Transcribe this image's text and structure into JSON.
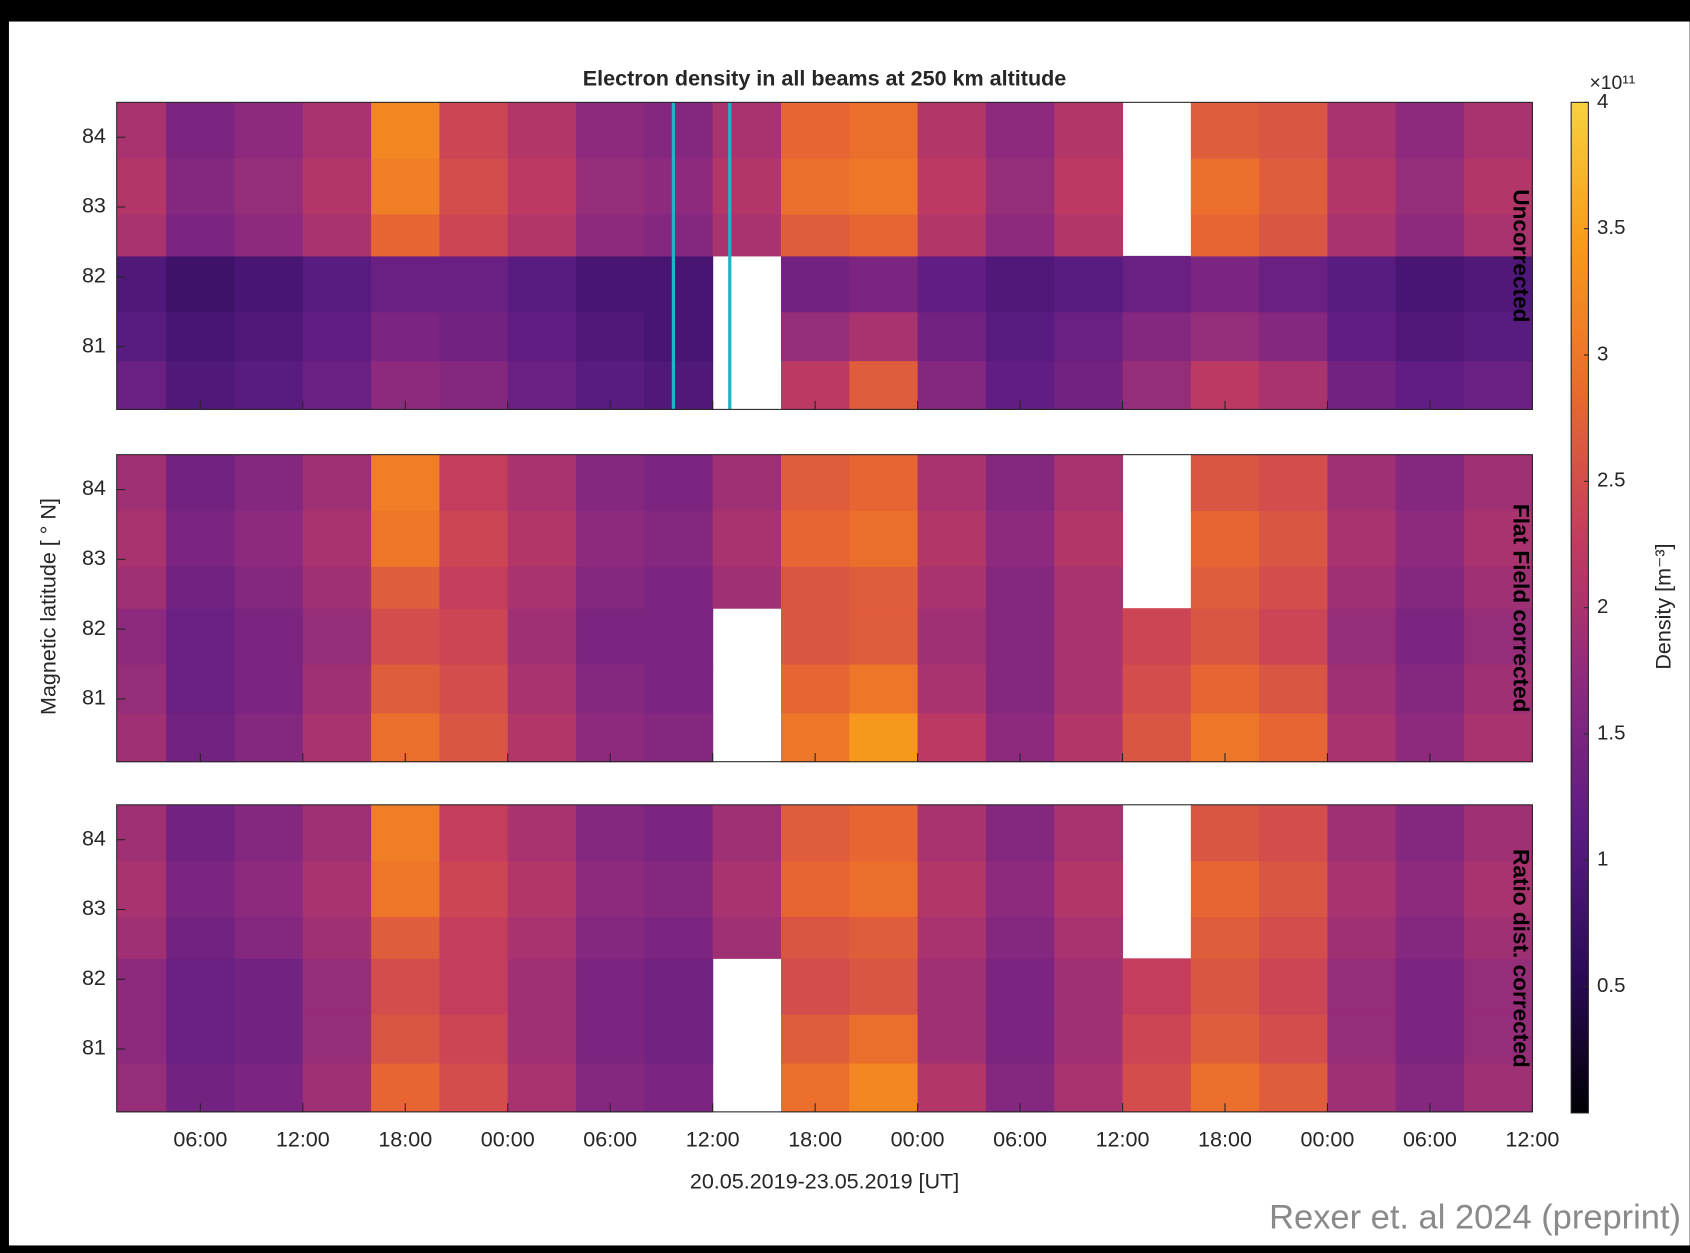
{
  "chart_data": {
    "type": "heatmap",
    "title": "Electron density in all beams at 250 km altitude",
    "xlabel": "20.05.2019-23.05.2019 [UT]",
    "ylabel": "Magnetic latitude [ ° N]",
    "xlim": [
      1.1,
      84
    ],
    "xticks": [
      {
        "value": 6,
        "label": "06:00"
      },
      {
        "value": 12,
        "label": "12:00"
      },
      {
        "value": 18,
        "label": "18:00"
      },
      {
        "value": 24,
        "label": "00:00"
      },
      {
        "value": 30,
        "label": "06:00"
      },
      {
        "value": 36,
        "label": "12:00"
      },
      {
        "value": 42,
        "label": "18:00"
      },
      {
        "value": 48,
        "label": "00:00"
      },
      {
        "value": 54,
        "label": "06:00"
      },
      {
        "value": 60,
        "label": "12:00"
      },
      {
        "value": 66,
        "label": "18:00"
      },
      {
        "value": 72,
        "label": "00:00"
      },
      {
        "value": 78,
        "label": "06:00"
      },
      {
        "value": 84,
        "label": "12:00"
      }
    ],
    "ylim": [
      80.1,
      84.5
    ],
    "yticks": [
      81,
      82,
      83,
      84
    ],
    "xbins": [
      0,
      4,
      8,
      12,
      16,
      20,
      24,
      28,
      32,
      36,
      40,
      44,
      48,
      52,
      56,
      60,
      64,
      68,
      72,
      76,
      80,
      84
    ],
    "ybins": [
      80.1,
      80.8,
      81.5,
      82.3,
      82.9,
      83.7,
      84.5
    ],
    "colorbar": {
      "label": "Density [m⁻³]",
      "multiplier": "×10¹¹",
      "clim": [
        0,
        4
      ],
      "ticks": [
        0.5,
        1,
        1.5,
        2,
        2.5,
        3,
        3.5,
        4
      ]
    },
    "colormap": [
      "#000004",
      "#2c0b5a",
      "#5c1c83",
      "#8e2a7e",
      "#c43c5e",
      "#ea6a2e",
      "#f79a1a",
      "#f7d13d"
    ],
    "missing_color": "#ffffff",
    "panels": [
      {
        "label": "Uncorrected",
        "vlines": {
          "x": [
            33.7,
            37.0
          ],
          "color": "#1fb5c9"
        },
        "z": [
          [
            1.3,
            1.0,
            1.1,
            1.3,
            1.7,
            1.6,
            1.3,
            1.1,
            1.0,
            null,
            2.2,
            2.7,
            1.6,
            1.2,
            1.4,
            1.8,
            2.2,
            2.0,
            1.4,
            1.2,
            1.3
          ],
          [
            1.1,
            0.9,
            1.0,
            1.2,
            1.5,
            1.4,
            1.2,
            1.0,
            0.9,
            null,
            1.8,
            2.0,
            1.4,
            1.1,
            1.3,
            1.6,
            1.8,
            1.6,
            1.2,
            1.0,
            1.1
          ],
          [
            1.0,
            0.8,
            0.9,
            1.1,
            1.3,
            1.3,
            1.1,
            0.9,
            0.9,
            null,
            1.4,
            1.5,
            1.2,
            1.0,
            1.1,
            1.3,
            1.5,
            1.3,
            1.1,
            0.9,
            1.0
          ],
          [
            2.0,
            1.5,
            1.7,
            2.0,
            2.8,
            2.4,
            2.1,
            1.7,
            1.6,
            2.0,
            2.7,
            2.8,
            2.1,
            1.7,
            2.1,
            null,
            2.8,
            2.6,
            2.0,
            1.7,
            2.0
          ],
          [
            2.1,
            1.6,
            1.8,
            2.1,
            3.1,
            2.5,
            2.2,
            1.8,
            1.7,
            2.1,
            2.9,
            3.0,
            2.2,
            1.8,
            2.2,
            null,
            2.9,
            2.7,
            2.1,
            1.8,
            2.1
          ],
          [
            2.0,
            1.5,
            1.7,
            2.0,
            3.2,
            2.4,
            2.1,
            1.7,
            1.6,
            2.0,
            2.8,
            2.9,
            2.1,
            1.7,
            2.1,
            null,
            2.7,
            2.6,
            2.0,
            1.7,
            2.0
          ]
        ]
      },
      {
        "label": "Flat Field corrected",
        "z": [
          [
            1.9,
            1.4,
            1.6,
            2.0,
            2.9,
            2.6,
            2.1,
            1.7,
            1.6,
            null,
            3.0,
            3.4,
            2.2,
            1.7,
            2.1,
            2.6,
            3.0,
            2.8,
            2.0,
            1.7,
            2.0
          ],
          [
            1.8,
            1.3,
            1.5,
            1.9,
            2.7,
            2.5,
            2.0,
            1.6,
            1.5,
            null,
            2.8,
            3.0,
            2.0,
            1.6,
            2.0,
            2.5,
            2.8,
            2.6,
            1.9,
            1.6,
            1.9
          ],
          [
            1.7,
            1.3,
            1.5,
            1.8,
            2.5,
            2.4,
            1.9,
            1.5,
            1.5,
            null,
            2.6,
            2.7,
            1.9,
            1.6,
            2.0,
            2.4,
            2.6,
            2.4,
            1.8,
            1.5,
            1.8
          ],
          [
            1.9,
            1.4,
            1.6,
            1.9,
            2.7,
            2.3,
            2.0,
            1.6,
            1.5,
            1.9,
            2.6,
            2.7,
            2.0,
            1.6,
            2.0,
            null,
            2.7,
            2.5,
            1.9,
            1.6,
            1.9
          ],
          [
            2.0,
            1.5,
            1.7,
            2.0,
            3.0,
            2.4,
            2.1,
            1.7,
            1.6,
            2.0,
            2.8,
            2.9,
            2.1,
            1.7,
            2.1,
            null,
            2.8,
            2.6,
            2.0,
            1.7,
            2.0
          ],
          [
            1.9,
            1.4,
            1.6,
            1.9,
            3.1,
            2.3,
            2.0,
            1.6,
            1.5,
            1.9,
            2.7,
            2.8,
            2.0,
            1.6,
            2.0,
            null,
            2.6,
            2.5,
            1.9,
            1.6,
            1.9
          ]
        ]
      },
      {
        "label": "Ratio dist. corrected",
        "z": [
          [
            1.8,
            1.4,
            1.5,
            1.9,
            2.8,
            2.5,
            2.0,
            1.6,
            1.5,
            null,
            2.9,
            3.2,
            2.1,
            1.6,
            2.0,
            2.5,
            2.9,
            2.7,
            1.9,
            1.6,
            1.9
          ],
          [
            1.7,
            1.3,
            1.4,
            1.8,
            2.6,
            2.4,
            1.9,
            1.5,
            1.4,
            null,
            2.7,
            2.9,
            1.9,
            1.5,
            1.9,
            2.4,
            2.7,
            2.5,
            1.8,
            1.5,
            1.8
          ],
          [
            1.7,
            1.3,
            1.4,
            1.8,
            2.5,
            2.3,
            1.9,
            1.5,
            1.4,
            null,
            2.5,
            2.6,
            1.9,
            1.5,
            1.9,
            2.3,
            2.6,
            2.4,
            1.8,
            1.5,
            1.8
          ],
          [
            1.9,
            1.4,
            1.6,
            1.9,
            2.7,
            2.3,
            2.0,
            1.6,
            1.5,
            1.9,
            2.6,
            2.7,
            2.0,
            1.6,
            2.0,
            null,
            2.7,
            2.5,
            1.9,
            1.6,
            1.9
          ],
          [
            2.0,
            1.5,
            1.7,
            2.0,
            3.0,
            2.4,
            2.1,
            1.7,
            1.6,
            2.0,
            2.8,
            2.9,
            2.1,
            1.7,
            2.1,
            null,
            2.8,
            2.6,
            2.0,
            1.7,
            2.0
          ],
          [
            1.9,
            1.4,
            1.6,
            1.9,
            3.1,
            2.3,
            2.0,
            1.6,
            1.5,
            1.9,
            2.7,
            2.8,
            2.0,
            1.6,
            2.0,
            null,
            2.6,
            2.5,
            1.9,
            1.6,
            1.9
          ]
        ]
      }
    ],
    "credit": "Rexer et. al 2024 (preprint)"
  }
}
